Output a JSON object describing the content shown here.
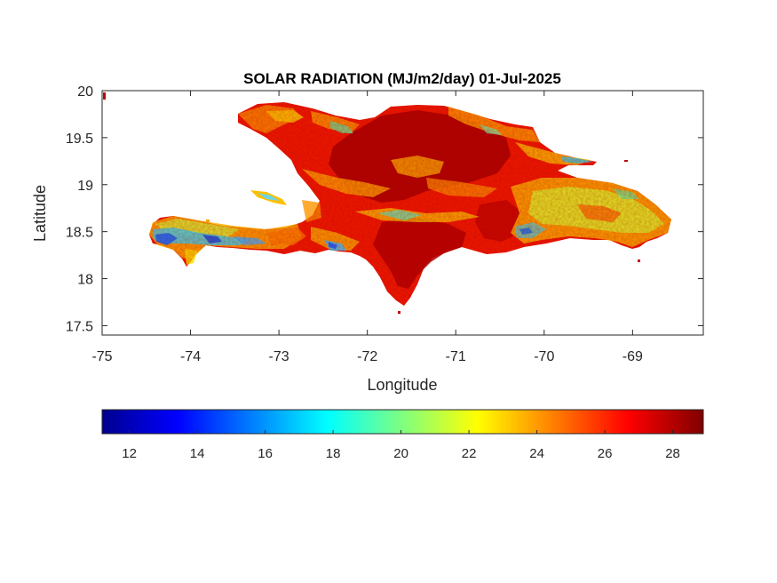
{
  "figure": {
    "title": "SOLAR RADIATION (MJ/m2/day) 01-Jul-2025",
    "xlabel": "Longitude",
    "ylabel": "Latitude"
  },
  "map": {
    "lon_range": [
      -75,
      -68.2
    ],
    "lat_range": [
      17.4,
      20
    ],
    "xticks": [
      -75,
      -74,
      -73,
      -72,
      -71,
      -70,
      -69
    ],
    "yticks": [
      17.5,
      18,
      18.5,
      19,
      19.5,
      20
    ],
    "xtick_labels": [
      "-75",
      "-74",
      "-73",
      "-72",
      "-71",
      "-70",
      "-69"
    ],
    "ytick_labels": [
      "17.5",
      "18",
      "18.5",
      "19",
      "19.5",
      "20"
    ],
    "colormap": "jet",
    "background": "#ffffff"
  },
  "colorbar": {
    "range": [
      11.2,
      28.9
    ],
    "ticks": [
      12,
      14,
      16,
      18,
      20,
      22,
      24,
      26,
      28
    ],
    "tick_labels": [
      "12",
      "14",
      "16",
      "18",
      "20",
      "22",
      "24",
      "26",
      "28"
    ],
    "orientation": "horizontal",
    "placement": "below"
  }
}
